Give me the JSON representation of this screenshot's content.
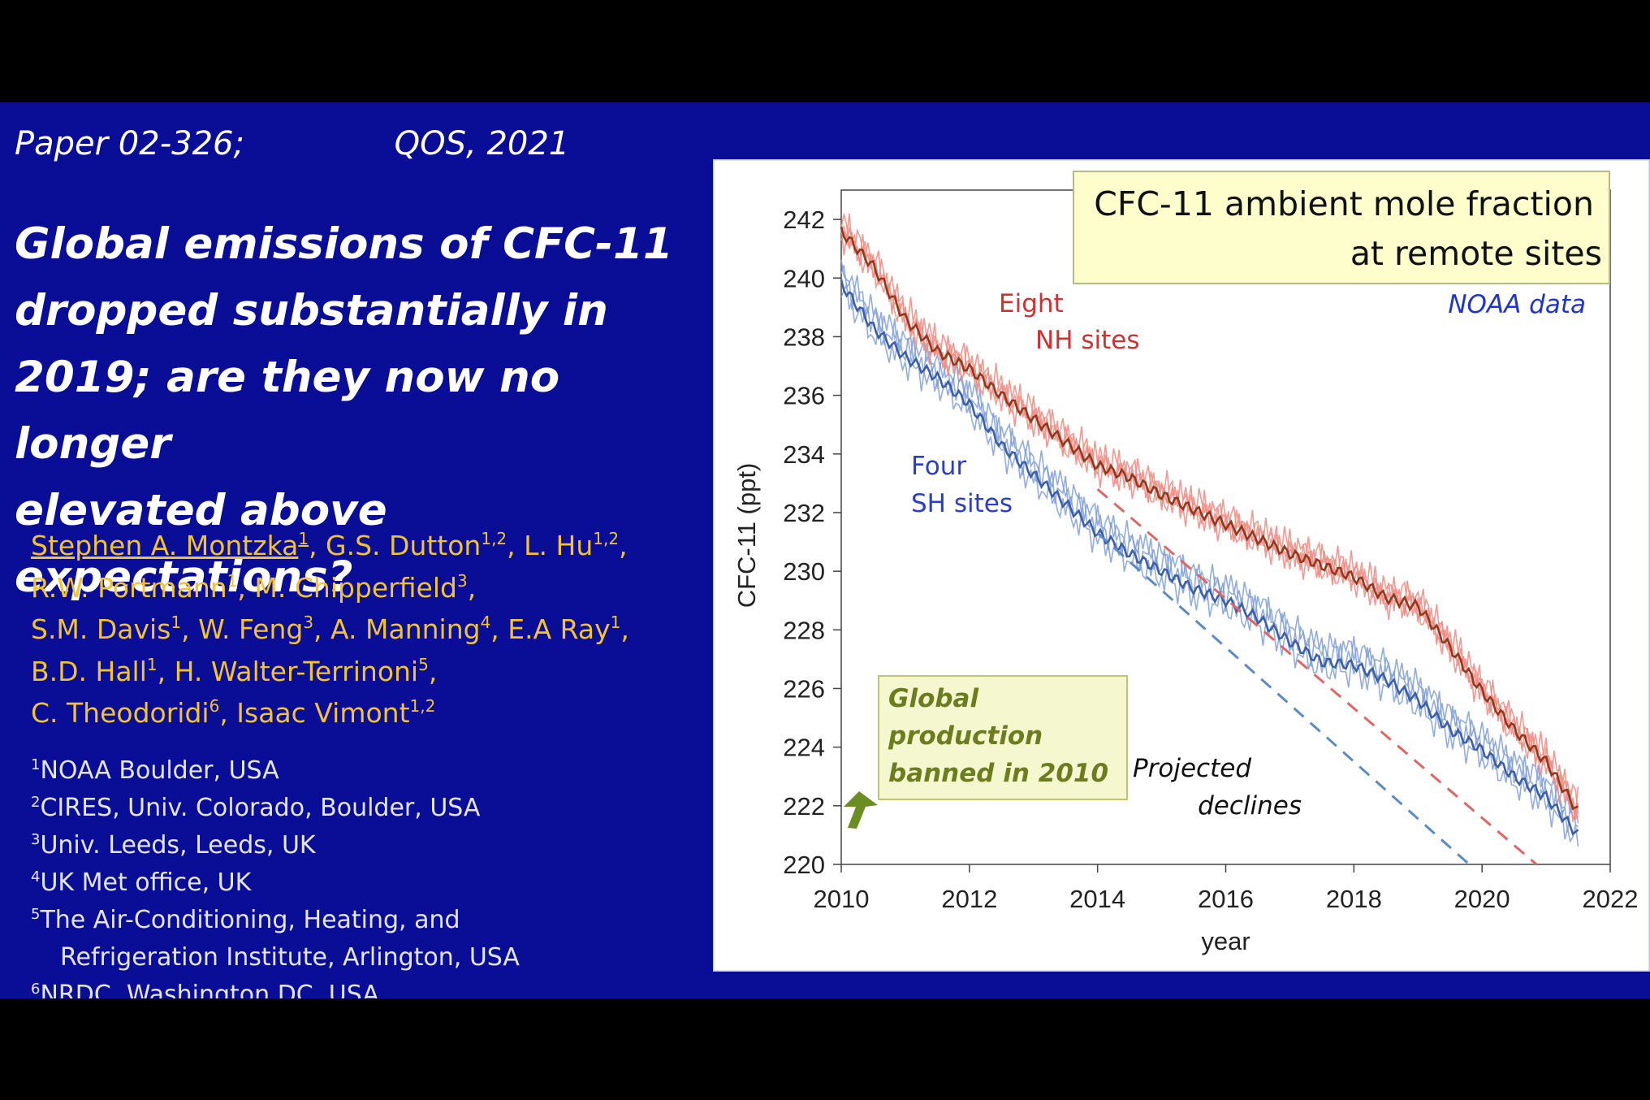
{
  "slide": {
    "paper_id": "Paper 02-326;",
    "venue": "QOS, 2021",
    "title_lines": [
      "Global emissions of CFC-11",
      "dropped substantially in",
      "2019; are they now no longer",
      "elevated above expectations?"
    ],
    "authors": [
      {
        "name": "Stephen A. Montzka",
        "aff": "1"
      },
      {
        "name": "G.S. Dutton",
        "aff": "1,2"
      },
      {
        "name": "L. Hu",
        "aff": "1,2"
      },
      {
        "name": "R.W. Portmann",
        "aff": "1"
      },
      {
        "name": "M. Chipperfield",
        "aff": "3"
      },
      {
        "name": "S.M. Davis",
        "aff": "1"
      },
      {
        "name": "W. Feng",
        "aff": "3"
      },
      {
        "name": "A. Manning",
        "aff": "4"
      },
      {
        "name": "E.A Ray",
        "aff": "1"
      },
      {
        "name": "B.D. Hall",
        "aff": "1"
      },
      {
        "name": "H. Walter-Terrinoni",
        "aff": "5"
      },
      {
        "name": "C. Theodoridi",
        "aff": "6"
      },
      {
        "name": "Isaac Vimont",
        "aff": "1,2"
      }
    ],
    "affiliations": [
      {
        "num": "1",
        "text": "NOAA Boulder, USA"
      },
      {
        "num": "2",
        "text": "CIRES, Univ. Colorado, Boulder, USA"
      },
      {
        "num": "3",
        "text": "Univ. Leeds, Leeds, UK"
      },
      {
        "num": "4",
        "text": "UK Met office, UK"
      },
      {
        "num": "5",
        "text": "The Air-Conditioning, Heating, and",
        "cont": "Refrigeration Institute, Arlington, USA"
      },
      {
        "num": "6",
        "text": "NRDC, Washington DC, USA"
      }
    ]
  },
  "colors": {
    "slide_bg": "#0a0d96",
    "title_text": "#ffffff",
    "authors_text": "#f1c232",
    "nh_light": "#ee8f87",
    "nh_dark": "#8f3a1e",
    "sh_light": "#7f9fd6",
    "sh_dark": "#3d5fa8",
    "nh_projection": "#e06666",
    "sh_projection": "#5b8ac4",
    "box_fill": "#fefecc",
    "green_box_fill": "#f5f7cf",
    "green_arrow": "#6b8e23"
  },
  "chart_data": {
    "type": "line",
    "title_lines": [
      "CFC-11 ambient mole fraction",
      "at remote sites"
    ],
    "xlabel": "year",
    "ylabel": "CFC-11 (ppt)",
    "xlim": [
      2010,
      2022
    ],
    "ylim": [
      220,
      243
    ],
    "x_ticks": [
      "2010",
      "2012",
      "2014",
      "2016",
      "2018",
      "2020",
      "2022"
    ],
    "y_ticks": [
      "220",
      "222",
      "224",
      "226",
      "228",
      "230",
      "232",
      "234",
      "236",
      "238",
      "240",
      "242"
    ],
    "grid": false,
    "source_label": "NOAA data",
    "annotations": {
      "nh_label": [
        "Eight",
        "NH sites"
      ],
      "sh_label": [
        "Four",
        "SH sites"
      ],
      "projection_label": [
        "Projected",
        "declines"
      ],
      "production_ban": [
        "Global",
        "production",
        "banned in 2010"
      ]
    },
    "series": [
      {
        "name": "Eight NH sites",
        "x": [
          2010.0,
          2010.5,
          2011.0,
          2011.5,
          2012.0,
          2012.5,
          2013.0,
          2013.5,
          2014.0,
          2014.5,
          2015.0,
          2015.5,
          2016.0,
          2016.5,
          2017.0,
          2017.5,
          2018.0,
          2018.5,
          2019.0,
          2019.5,
          2020.0,
          2020.5,
          2021.0,
          2021.5
        ],
        "y": [
          241.6,
          240.4,
          238.6,
          237.5,
          236.9,
          236.0,
          235.2,
          234.4,
          233.6,
          233.2,
          232.6,
          232.1,
          231.6,
          231.1,
          230.6,
          230.2,
          229.8,
          229.1,
          228.8,
          227.4,
          225.9,
          224.6,
          223.5,
          221.8
        ]
      },
      {
        "name": "Four SH sites",
        "x": [
          2010.0,
          2010.5,
          2011.0,
          2011.5,
          2012.0,
          2012.5,
          2013.0,
          2013.5,
          2014.0,
          2014.5,
          2015.0,
          2015.5,
          2016.0,
          2016.5,
          2017.0,
          2017.5,
          2018.0,
          2018.5,
          2019.0,
          2019.5,
          2020.0,
          2020.5,
          2021.0,
          2021.5
        ],
        "y": [
          239.8,
          238.3,
          237.3,
          236.6,
          235.7,
          234.3,
          233.3,
          232.3,
          231.3,
          230.6,
          230.0,
          229.4,
          229.0,
          228.4,
          227.6,
          226.9,
          226.8,
          226.3,
          225.6,
          224.6,
          223.9,
          223.0,
          222.3,
          221.0
        ]
      },
      {
        "name": "Projected declines (NH)",
        "x": [
          2014.0,
          2020.85
        ],
        "y": [
          232.8,
          220.0
        ]
      },
      {
        "name": "Projected declines (SH)",
        "x": [
          2014.0,
          2019.8
        ],
        "y": [
          231.3,
          220.0
        ]
      }
    ]
  }
}
